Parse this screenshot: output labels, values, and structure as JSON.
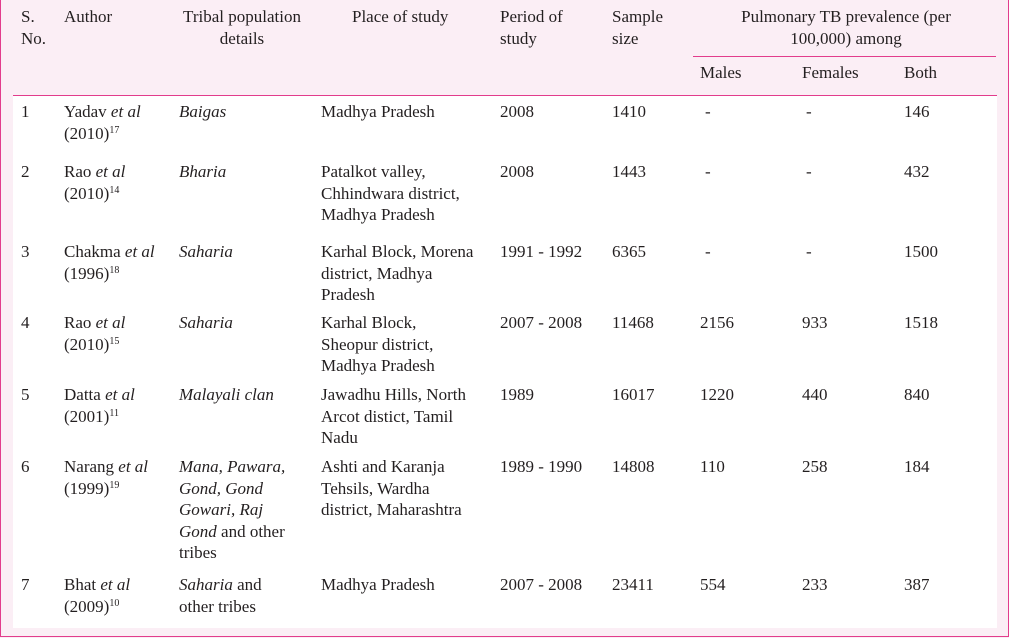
{
  "header": {
    "sno": "S. No.",
    "author": "Author",
    "tribal": "Tribal population details",
    "place": "Place of study",
    "period": "Period of study",
    "sample": "Sample size",
    "prevalence": "Pulmonary TB prevalence (per 100,000) among",
    "males": "Males",
    "females": "Females",
    "both": "Both"
  },
  "rows": [
    {
      "sno": "1",
      "author_line1_name": "Yadav ",
      "author_line1_etal": "et al",
      "author_year": "(2010)",
      "author_ref": "17",
      "tribe_lines": [
        "Baigas"
      ],
      "place_lines": [
        "Madhya Pradesh"
      ],
      "period": "2008",
      "sample": "1410",
      "males": "-",
      "females": "-",
      "both": "146"
    },
    {
      "sno": "2",
      "author_line1_name": "Rao ",
      "author_line1_etal": "et al",
      "author_year": "(2010)",
      "author_ref": "14",
      "tribe_lines": [
        "Bharia"
      ],
      "place_lines": [
        "Patalkot valley,",
        "Chhindwara district,",
        "Madhya Pradesh"
      ],
      "period": "2008",
      "sample": "1443",
      "males": "-",
      "females": "-",
      "both": "432"
    },
    {
      "sno": "3",
      "author_line1_name": "Chakma ",
      "author_line1_etal": "et al",
      "author_year": "(1996)",
      "author_ref": "18",
      "tribe_lines": [
        "Saharia"
      ],
      "place_lines": [
        "Karhal Block, Morena",
        "district, Madhya",
        "Pradesh"
      ],
      "period": "1991 - 1992",
      "sample": "6365",
      "males": "-",
      "females": "-",
      "both": "1500"
    },
    {
      "sno": "4",
      "author_line1_name": "Rao ",
      "author_line1_etal": "et al",
      "author_year": "(2010)",
      "author_ref": "15",
      "tribe_lines": [
        "Saharia"
      ],
      "place_lines": [
        "Karhal Block,",
        "Sheopur district,",
        "Madhya Pradesh"
      ],
      "period": "2007 - 2008",
      "sample": "11468",
      "males": "2156",
      "females": "933",
      "both": "1518"
    },
    {
      "sno": "5",
      "author_line1_name": "Datta ",
      "author_line1_etal": "et al",
      "author_year": "(2001)",
      "author_ref": "11",
      "tribe_lines": [
        "Malayali clan"
      ],
      "place_lines": [
        "Jawadhu Hills, North",
        "Arcot distict, Tamil",
        "Nadu"
      ],
      "period": "1989",
      "sample": "16017",
      "males": "1220",
      "females": "440",
      "both": "840"
    },
    {
      "sno": "6",
      "author_line1_name": "Narang ",
      "author_line1_etal": "et al",
      "author_year": "(1999)",
      "author_ref": "19",
      "tribe_lines": [
        "Mana, Pawara,",
        "Gond, Gond",
        "Gowari, Raj",
        "Gond"
      ],
      "tribe_tail": " and other",
      "tribe_last": "tribes",
      "place_lines": [
        "Ashti and Karanja",
        "Tehsils, Wardha",
        "district, Maharashtra"
      ],
      "period": "1989 - 1990",
      "sample": "14808",
      "males": "110",
      "females": "258",
      "both": "184"
    },
    {
      "sno": "7",
      "author_line1_name": "Bhat ",
      "author_line1_etal": "et al",
      "author_year": "(2009)",
      "author_ref": "10",
      "tribe_lines": [
        "Saharia"
      ],
      "tribe_tail": " and",
      "tribe_last": "other tribes",
      "place_lines": [
        "Madhya Pradesh"
      ],
      "period": "2007 - 2008",
      "sample": "23411",
      "males": "554",
      "females": "233",
      "both": "387"
    }
  ]
}
